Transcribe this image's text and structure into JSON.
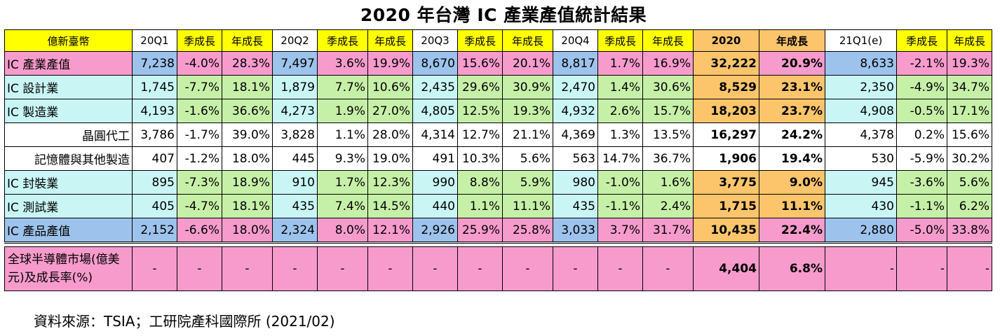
{
  "title": "2020 年台灣 IC 產業產值統計結果",
  "headers": [
    "億新臺幣",
    "20Q1",
    "季成長",
    "年成長",
    "20Q2",
    "季成長",
    "年成長",
    "20Q3",
    "季成長",
    "年成長",
    "20Q4",
    "季成長",
    "年成長",
    "2020",
    "年成長",
    "21Q1(e)",
    "季成長",
    "年成長"
  ],
  "rows": [
    {
      "label": "IC 產業產值",
      "cells": [
        "7,238",
        "-4.0%",
        "28.3%",
        "7,497",
        "3.6%",
        "19.9%",
        "8,670",
        "15.6%",
        "20.1%",
        "8,817",
        "1.7%",
        "16.9%",
        "32,222",
        "20.9%",
        "8,633",
        "-2.1%",
        "19.3%"
      ]
    },
    {
      "label": "IC 設計業",
      "cells": [
        "1,745",
        "-7.7%",
        "18.1%",
        "1,879",
        "7.7%",
        "10.6%",
        "2,435",
        "29.6%",
        "30.9%",
        "2,470",
        "1.4%",
        "30.6%",
        "8,529",
        "23.1%",
        "2,350",
        "-4.9%",
        "34.7%"
      ]
    },
    {
      "label": "IC 製造業",
      "cells": [
        "4,193",
        "-1.6%",
        "36.6%",
        "4,273",
        "1.9%",
        "27.0%",
        "4,805",
        "12.5%",
        "19.3%",
        "4,932",
        "2.6%",
        "15.7%",
        "18,203",
        "23.7%",
        "4,908",
        "-0.5%",
        "17.1%"
      ]
    },
    {
      "label": "晶圓代工",
      "cells": [
        "3,786",
        "-1.7%",
        "39.0%",
        "3,828",
        "1.1%",
        "28.0%",
        "4,314",
        "12.7%",
        "21.1%",
        "4,369",
        "1.3%",
        "13.5%",
        "16,297",
        "24.2%",
        "4,378",
        "0.2%",
        "15.6%"
      ]
    },
    {
      "label": "記憶體與其他製造",
      "cells": [
        "407",
        "-1.2%",
        "18.0%",
        "445",
        "9.3%",
        "19.0%",
        "491",
        "10.3%",
        "5.6%",
        "563",
        "14.7%",
        "36.7%",
        "1,906",
        "19.4%",
        "530",
        "-5.9%",
        "30.2%"
      ]
    },
    {
      "label": "IC 封裝業",
      "cells": [
        "895",
        "-7.3%",
        "18.9%",
        "910",
        "1.7%",
        "12.3%",
        "990",
        "8.8%",
        "5.9%",
        "980",
        "-1.0%",
        "1.6%",
        "3,775",
        "9.0%",
        "945",
        "-3.6%",
        "5.6%"
      ]
    },
    {
      "label": "IC 測試業",
      "cells": [
        "405",
        "-4.7%",
        "18.1%",
        "435",
        "7.4%",
        "14.5%",
        "440",
        "1.1%",
        "11.1%",
        "435",
        "-1.1%",
        "2.4%",
        "1,715",
        "11.1%",
        "430",
        "-1.1%",
        "6.2%"
      ]
    },
    {
      "label": "IC 產品產值",
      "cells": [
        "2,152",
        "-6.6%",
        "18.0%",
        "2,324",
        "8.0%",
        "12.1%",
        "2,926",
        "25.9%",
        "25.8%",
        "3,033",
        "3.7%",
        "31.7%",
        "10,435",
        "22.4%",
        "2,880",
        "-5.0%",
        "33.8%"
      ]
    }
  ],
  "market_row": {
    "label": "全球半導體市場(億美元)及成長率(%)",
    "cells": [
      "-",
      "-",
      "-",
      "-",
      "-",
      "-",
      "-",
      "-",
      "-",
      "-",
      "-",
      "-",
      "4,404",
      "6.8%",
      "-",
      "-",
      "-"
    ]
  },
  "source": "資料來源：TSIA；工研院產科國際所 (2021/02)",
  "colors": {
    "header_yellow": "#ffff00",
    "pink": "#f79bcd",
    "cyan": "#c9f5f5",
    "blue": "#9dc3ec",
    "green": "#c6f0a8",
    "orange": "#fcc56c",
    "white": "#ffffff"
  }
}
